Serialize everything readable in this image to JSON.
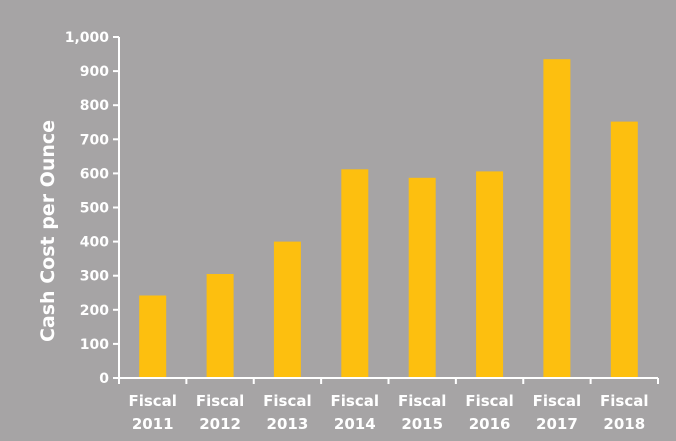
{
  "chart_data": {
    "type": "bar",
    "title": "",
    "xlabel": "",
    "ylabel": "Cash Cost per Ounce",
    "categories": [
      [
        "Fiscal",
        "2011"
      ],
      [
        "Fiscal",
        "2012"
      ],
      [
        "Fiscal",
        "2013"
      ],
      [
        "Fiscal",
        "2014"
      ],
      [
        "Fiscal",
        "2015"
      ],
      [
        "Fiscal",
        "2016"
      ],
      [
        "Fiscal",
        "2017"
      ],
      [
        "Fiscal",
        "2018"
      ]
    ],
    "values": [
      242,
      305,
      400,
      612,
      587,
      606,
      935,
      752
    ],
    "ylim": [
      0,
      1000
    ],
    "yticks": [
      0,
      100,
      200,
      300,
      400,
      500,
      600,
      700,
      800,
      900,
      1000
    ],
    "ytick_labels": [
      "0",
      "100",
      "200",
      "300",
      "400",
      "500",
      "600",
      "700",
      "800",
      "900",
      "1,000"
    ],
    "grid": false,
    "legend": "none",
    "colors": {
      "background": "#a6a4a5",
      "bar": "#fdbf0f",
      "axis": "#ffffff",
      "text": "#ffffff"
    }
  }
}
